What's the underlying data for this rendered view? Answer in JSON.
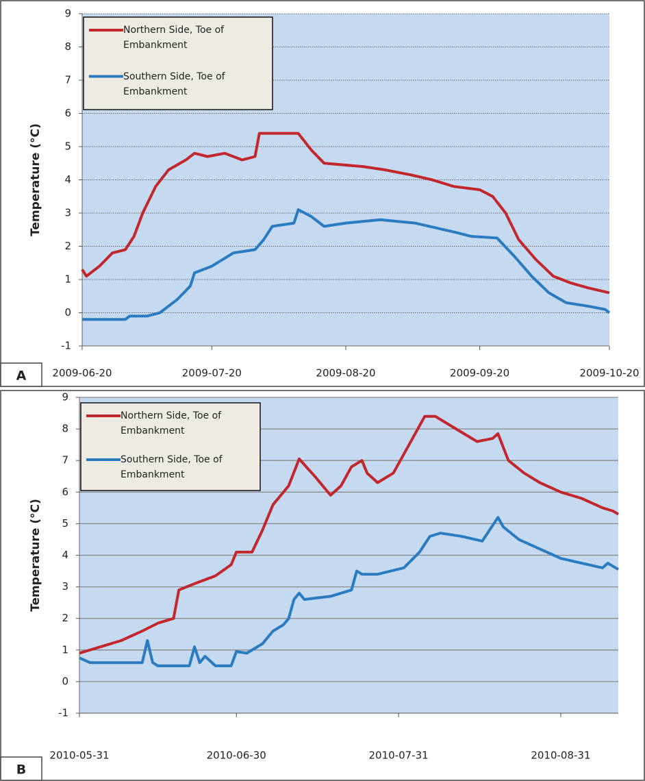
{
  "chart_data": [
    {
      "type": "line",
      "panel_label": "A",
      "ylabel": "Temperature (°C)",
      "grid": "dotted",
      "legend": "upper left",
      "xlim": [
        "2009-06-20",
        "2009-10-20"
      ],
      "xticks": [
        "2009-06-20",
        "2009-07-20",
        "2009-08-20",
        "2009-09-20",
        "2009-10-20"
      ],
      "ylim": [
        -1,
        9
      ],
      "yticks": [
        -1,
        0,
        1,
        2,
        3,
        4,
        5,
        6,
        7,
        8,
        9
      ],
      "series": [
        {
          "name": "Northern Side, Toe of Embankment",
          "color": "#c1272d",
          "x": [
            "2009-06-20",
            "2009-06-21",
            "2009-06-24",
            "2009-06-27",
            "2009-06-30",
            "2009-07-02",
            "2009-07-04",
            "2009-07-07",
            "2009-07-10",
            "2009-07-14",
            "2009-07-16",
            "2009-07-19",
            "2009-07-23",
            "2009-07-27",
            "2009-07-30",
            "2009-07-31",
            "2009-08-09",
            "2009-08-12",
            "2009-08-15",
            "2009-08-24",
            "2009-08-29",
            "2009-09-04",
            "2009-09-09",
            "2009-09-14",
            "2009-09-20",
            "2009-09-23",
            "2009-09-26",
            "2009-09-29",
            "2009-10-03",
            "2009-10-07",
            "2009-10-11",
            "2009-10-15",
            "2009-10-20"
          ],
          "values": [
            1.3,
            1.1,
            1.4,
            1.8,
            1.9,
            2.3,
            3.0,
            3.8,
            4.3,
            4.6,
            4.8,
            4.7,
            4.8,
            4.6,
            4.7,
            5.4,
            5.4,
            4.9,
            4.5,
            4.4,
            4.3,
            4.15,
            4.0,
            3.8,
            3.7,
            3.5,
            3.0,
            2.2,
            1.6,
            1.1,
            0.9,
            0.75,
            0.6
          ]
        },
        {
          "name": "Southern Side, Toe of Embankment",
          "color": "#2b7bc0",
          "x": [
            "2009-06-20",
            "2009-06-30",
            "2009-07-01",
            "2009-07-05",
            "2009-07-08",
            "2009-07-12",
            "2009-07-15",
            "2009-07-16",
            "2009-07-20",
            "2009-07-25",
            "2009-07-30",
            "2009-08-01",
            "2009-08-03",
            "2009-08-08",
            "2009-08-09",
            "2009-08-12",
            "2009-08-15",
            "2009-08-20",
            "2009-08-28",
            "2009-09-05",
            "2009-09-10",
            "2009-09-15",
            "2009-09-18",
            "2009-09-24",
            "2009-09-28",
            "2009-10-02",
            "2009-10-06",
            "2009-10-10",
            "2009-10-15",
            "2009-10-19",
            "2009-10-20"
          ],
          "values": [
            -0.2,
            -0.2,
            -0.1,
            -0.1,
            0.0,
            0.4,
            0.8,
            1.2,
            1.4,
            1.8,
            1.9,
            2.2,
            2.6,
            2.7,
            3.1,
            2.9,
            2.6,
            2.7,
            2.8,
            2.7,
            2.55,
            2.4,
            2.3,
            2.25,
            1.7,
            1.1,
            0.6,
            0.3,
            0.2,
            0.1,
            0.0
          ]
        }
      ]
    },
    {
      "type": "line",
      "panel_label": "B",
      "ylabel": "Temperature (°C)",
      "grid": "solid",
      "legend": "upper left",
      "xlim": [
        "2010-05-31",
        "2010-09-11"
      ],
      "xticks": [
        "2010-05-31",
        "2010-06-30",
        "2010-07-31",
        "2010-08-31"
      ],
      "ylim": [
        -1,
        9
      ],
      "yticks": [
        -1,
        0,
        1,
        2,
        3,
        4,
        5,
        6,
        7,
        8,
        9
      ],
      "series": [
        {
          "name": "Northern Side, Toe of Embankment",
          "color": "#c1272d",
          "x": [
            "2010-05-31",
            "2010-06-04",
            "2010-06-08",
            "2010-06-12",
            "2010-06-15",
            "2010-06-18",
            "2010-06-19",
            "2010-06-22",
            "2010-06-26",
            "2010-06-29",
            "2010-06-30",
            "2010-07-03",
            "2010-07-05",
            "2010-07-07",
            "2010-07-10",
            "2010-07-12",
            "2010-07-15",
            "2010-07-18",
            "2010-07-20",
            "2010-07-22",
            "2010-07-24",
            "2010-07-25",
            "2010-07-27",
            "2010-07-30",
            "2010-08-02",
            "2010-08-05",
            "2010-08-07",
            "2010-08-11",
            "2010-08-15",
            "2010-08-18",
            "2010-08-19",
            "2010-08-21",
            "2010-08-24",
            "2010-08-27",
            "2010-08-31",
            "2010-09-04",
            "2010-09-08",
            "2010-09-10",
            "2010-09-11"
          ],
          "values": [
            0.9,
            1.1,
            1.3,
            1.6,
            1.85,
            2.0,
            2.9,
            3.1,
            3.35,
            3.7,
            4.1,
            4.1,
            4.8,
            5.6,
            6.2,
            7.05,
            6.5,
            5.9,
            6.2,
            6.8,
            7.0,
            6.6,
            6.3,
            6.6,
            7.5,
            8.4,
            8.4,
            8.0,
            7.6,
            7.7,
            7.85,
            7.0,
            6.6,
            6.3,
            6.0,
            5.8,
            5.5,
            5.4,
            5.3
          ]
        },
        {
          "name": "Southern Side, Toe of Embankment",
          "color": "#2b7bc0",
          "x": [
            "2010-05-31",
            "2010-06-02",
            "2010-06-12",
            "2010-06-13",
            "2010-06-14",
            "2010-06-15",
            "2010-06-21",
            "2010-06-22",
            "2010-06-23",
            "2010-06-24",
            "2010-06-26",
            "2010-06-29",
            "2010-06-30",
            "2010-07-02",
            "2010-07-05",
            "2010-07-07",
            "2010-07-09",
            "2010-07-10",
            "2010-07-11",
            "2010-07-12",
            "2010-07-13",
            "2010-07-18",
            "2010-07-22",
            "2010-07-23",
            "2010-07-24",
            "2010-07-27",
            "2010-08-01",
            "2010-08-04",
            "2010-08-06",
            "2010-08-08",
            "2010-08-12",
            "2010-08-16",
            "2010-08-19",
            "2010-08-20",
            "2010-08-23",
            "2010-08-27",
            "2010-08-31",
            "2010-09-04",
            "2010-09-08",
            "2010-09-09",
            "2010-09-11"
          ],
          "values": [
            0.75,
            0.6,
            0.6,
            1.3,
            0.6,
            0.5,
            0.5,
            1.1,
            0.6,
            0.8,
            0.5,
            0.5,
            0.95,
            0.9,
            1.2,
            1.6,
            1.8,
            2.0,
            2.6,
            2.8,
            2.6,
            2.7,
            2.9,
            3.5,
            3.4,
            3.4,
            3.6,
            4.1,
            4.6,
            4.7,
            4.6,
            4.45,
            5.2,
            4.9,
            4.5,
            4.2,
            3.9,
            3.75,
            3.6,
            3.75,
            3.55
          ]
        }
      ]
    }
  ]
}
